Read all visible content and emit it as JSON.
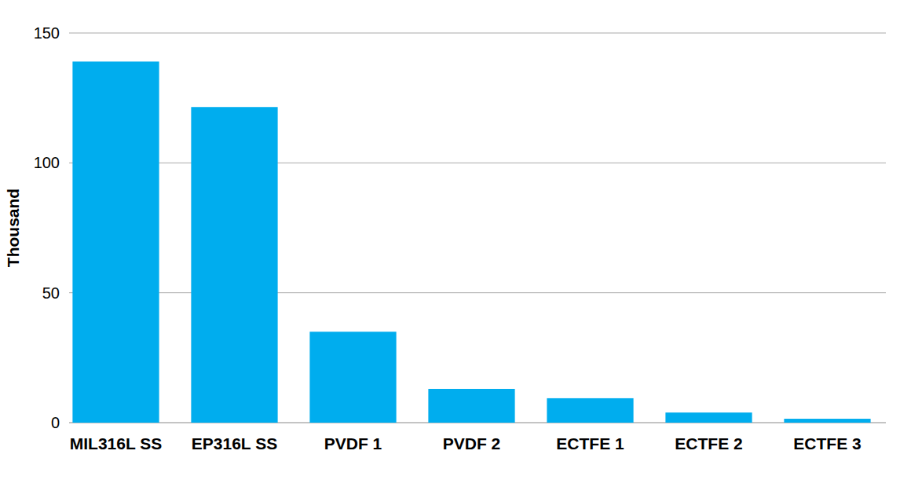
{
  "chart_data": {
    "type": "bar",
    "y_label": "Thousand",
    "categories": [
      "MIL316L SS",
      "EP316L SS",
      "PVDF 1",
      "PVDF 2",
      "ECTFE 1",
      "ECTFE 2",
      "ECTFE 3"
    ],
    "values": [
      139,
      121.5,
      35,
      13,
      9.4,
      3.9,
      1.5
    ],
    "color": "#00adee",
    "ylim": [
      0,
      150
    ],
    "yticks": [
      0,
      50,
      100,
      150
    ],
    "grid": true
  }
}
